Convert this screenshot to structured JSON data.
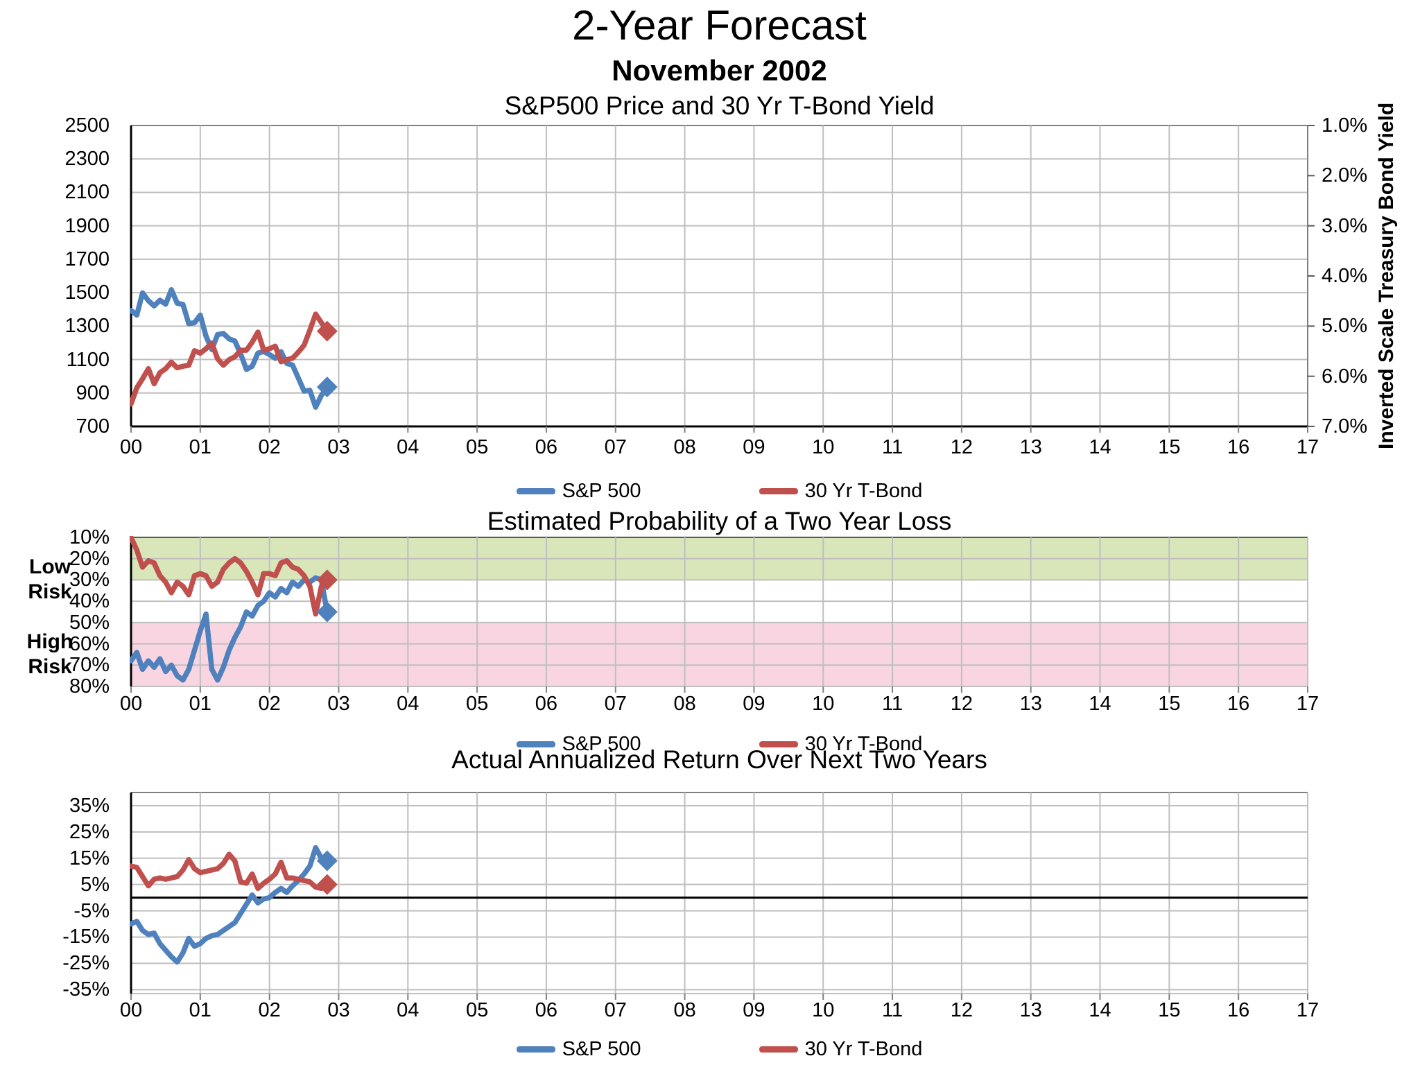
{
  "header": {
    "title": "2-Year Forecast",
    "date": "November 2002"
  },
  "colors": {
    "sp500": "#4F81BD",
    "tbond": "#C0504D",
    "low_risk_band": "#D8E6BA",
    "high_risk_band": "#F9D5E1",
    "grid": "#BFBFBF",
    "border": "#7F7F7F",
    "axis": "#000000"
  },
  "x_axis": {
    "year_labels": [
      "00",
      "01",
      "02",
      "03",
      "04",
      "05",
      "06",
      "07",
      "08",
      "09",
      "10",
      "11",
      "12",
      "13",
      "14",
      "15",
      "16",
      "17"
    ]
  },
  "legend": {
    "items": [
      {
        "label": "S&P 500",
        "color": "sp500"
      },
      {
        "label": "30 Yr T-Bond",
        "color": "tbond"
      }
    ]
  },
  "chart_data": [
    {
      "type": "line",
      "title": "S&P500 Price and 30 Yr T-Bond Yield",
      "x_start": "2000-01",
      "x_step": "month",
      "x_range_years": [
        0,
        17
      ],
      "end_marker": "diamond",
      "left_axis": {
        "min": 700,
        "max": 2500,
        "tick_step": 200,
        "tick_labels": [
          "2500",
          "2300",
          "2100",
          "1900",
          "1700",
          "1500",
          "1300",
          "1100",
          "900",
          "700"
        ]
      },
      "right_axis": {
        "title": "Inverted Scale Treasury Bond Yield",
        "min": 1.0,
        "max": 7.0,
        "inverted": true,
        "tick_labels": [
          "1.0%",
          "2.0%",
          "3.0%",
          "4.0%",
          "5.0%",
          "6.0%",
          "7.0%"
        ]
      },
      "series": [
        {
          "name": "S&P 500",
          "axis": "left",
          "color": "sp500",
          "values": [
            1394,
            1366,
            1499,
            1452,
            1421,
            1455,
            1431,
            1518,
            1437,
            1429,
            1315,
            1320,
            1366,
            1240,
            1160,
            1249,
            1256,
            1224,
            1211,
            1134,
            1041,
            1060,
            1139,
            1148,
            1130,
            1107,
            1147,
            1077,
            1067,
            990,
            911,
            916,
            815,
            886,
            936
          ]
        },
        {
          "name": "30 Yr T-Bond",
          "axis": "right",
          "color": "tbond",
          "values": [
            6.55,
            6.23,
            6.05,
            5.85,
            6.15,
            5.93,
            5.85,
            5.72,
            5.83,
            5.8,
            5.78,
            5.49,
            5.54,
            5.45,
            5.34,
            5.65,
            5.78,
            5.67,
            5.61,
            5.48,
            5.48,
            5.32,
            5.12,
            5.48,
            5.45,
            5.4,
            5.71,
            5.67,
            5.64,
            5.52,
            5.38,
            5.08,
            4.76,
            4.93,
            5.1
          ]
        }
      ]
    },
    {
      "type": "line",
      "title": "Estimated Probability of a Two Year Loss",
      "x_start": "2000-01",
      "x_step": "month",
      "x_range_years": [
        0,
        17
      ],
      "end_marker": "diamond",
      "y_axis": {
        "min": 10,
        "max": 80,
        "tick_step": 10,
        "min_at_top": true,
        "tick_labels": [
          "10%",
          "20%",
          "30%",
          "40%",
          "50%",
          "60%",
          "70%",
          "80%"
        ]
      },
      "bands": [
        {
          "label": "Low Risk",
          "from": 10,
          "to": 30,
          "color": "low_risk_band"
        },
        {
          "label": "High Risk",
          "from": 50,
          "to": 80,
          "color": "high_risk_band"
        }
      ],
      "series": [
        {
          "name": "S&P 500",
          "color": "sp500",
          "values": [
            68,
            64,
            72,
            68,
            71,
            67,
            73,
            70,
            75,
            77,
            72,
            63,
            54,
            46,
            72,
            77,
            71,
            63,
            57,
            52,
            45,
            47,
            42,
            40,
            36,
            38,
            34,
            36,
            31,
            33,
            30,
            31,
            29,
            30,
            45
          ]
        },
        {
          "name": "30 Yr T-Bond",
          "color": "tbond",
          "values": [
            10,
            16,
            24,
            21,
            22,
            28,
            31,
            36,
            31,
            33,
            37,
            28,
            27,
            28,
            33,
            31,
            25,
            22,
            20,
            22,
            26,
            31,
            37,
            27,
            27,
            28,
            22,
            21,
            24,
            25,
            28,
            33,
            46,
            33,
            30
          ]
        }
      ]
    },
    {
      "type": "line",
      "title": "Actual Annualized Return Over Next Two Years",
      "x_start": "2000-01",
      "x_step": "month",
      "x_range_years": [
        0,
        17
      ],
      "end_marker": "diamond",
      "y_axis": {
        "min": -35,
        "max": 35,
        "tick_step": 10,
        "zero_line": true,
        "tick_labels": [
          "35%",
          "25%",
          "15%",
          "5%",
          "-5%",
          "-15%",
          "-25%",
          "-35%"
        ]
      },
      "series": [
        {
          "name": "S&P 500",
          "color": "sp500",
          "values": [
            -10,
            -9,
            -12.5,
            -14,
            -13.5,
            -17.5,
            -20,
            -22.5,
            -24.5,
            -21,
            -15.5,
            -18.5,
            -17.5,
            -15.5,
            -14.5,
            -14,
            -12.5,
            -11,
            -9.5,
            -6,
            -2.5,
            1,
            -2,
            -0.5,
            0,
            2,
            3.5,
            2,
            4.5,
            6.5,
            9,
            12,
            19,
            15,
            14
          ]
        },
        {
          "name": "30 Yr T-Bond",
          "color": "tbond",
          "values": [
            12,
            11.5,
            8,
            4.5,
            7,
            7.5,
            7,
            7.5,
            8,
            10.5,
            14.5,
            11,
            9.5,
            10,
            10.5,
            11,
            13,
            16.5,
            14,
            6,
            5.5,
            9,
            3.5,
            5.5,
            7,
            9,
            13.5,
            7.5,
            7.5,
            7,
            6.5,
            6,
            4,
            3.5,
            5
          ]
        }
      ]
    }
  ]
}
